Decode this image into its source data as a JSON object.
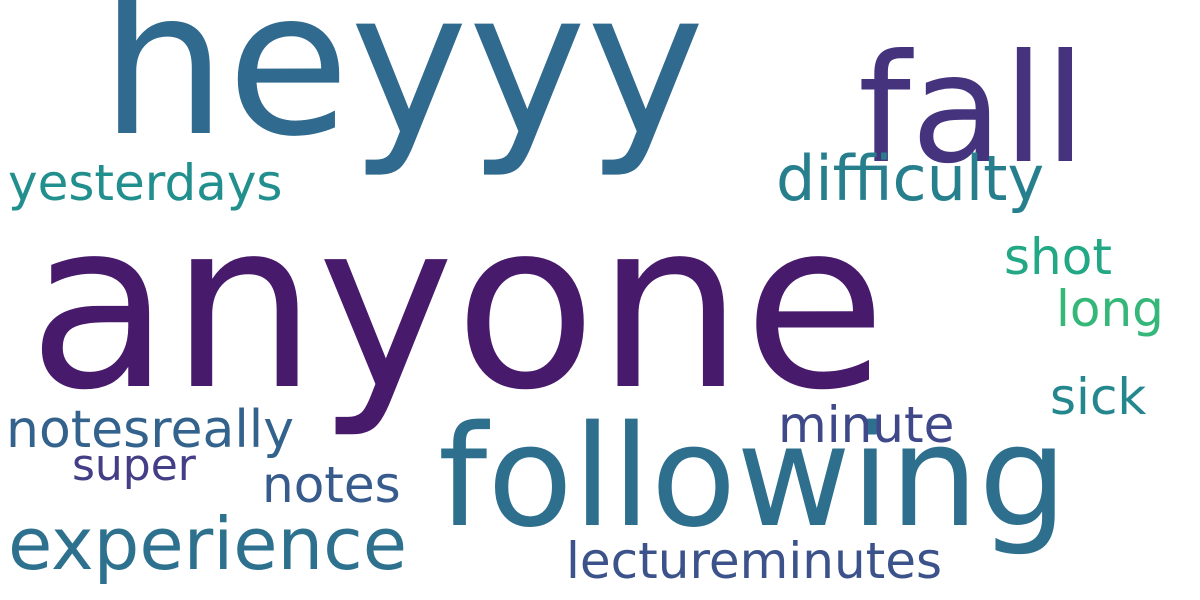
{
  "words": [
    {
      "text": "anyone",
      "color": "#481a6c"
    },
    {
      "text": "heyyy",
      "color": "#306a8f"
    },
    {
      "text": "following",
      "color": "#2e6f8e"
    },
    {
      "text": "fall",
      "color": "#46337e"
    },
    {
      "text": "experience",
      "color": "#2d718e"
    },
    {
      "text": "difficulty",
      "color": "#277f8e"
    },
    {
      "text": "yesterdays",
      "color": "#218f8d"
    },
    {
      "text": "notesreally",
      "color": "#33638d"
    },
    {
      "text": "minute",
      "color": "#3f4889"
    },
    {
      "text": "shot",
      "color": "#22a884"
    },
    {
      "text": "long",
      "color": "#35b779"
    },
    {
      "text": "sick",
      "color": "#24878e"
    },
    {
      "text": "super",
      "color": "#433e85"
    },
    {
      "text": "notes",
      "color": "#375b8d"
    },
    {
      "text": "lectureminutes",
      "color": "#3b528b"
    }
  ]
}
